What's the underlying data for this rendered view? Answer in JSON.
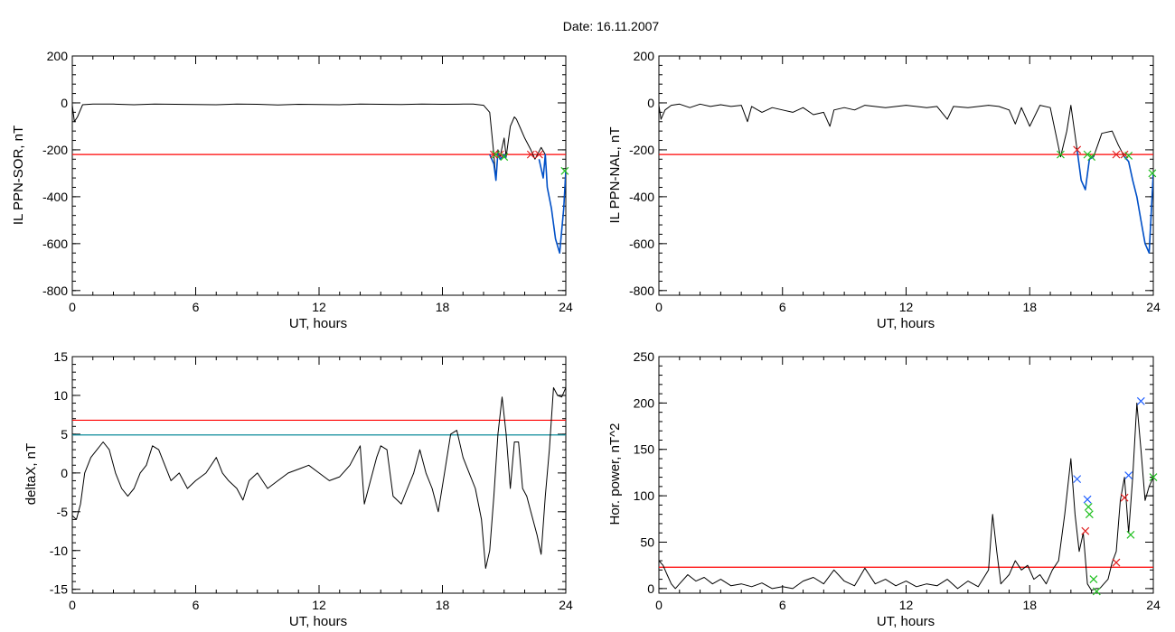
{
  "figure": {
    "title": "Date:  16.11.2007"
  },
  "colors": {
    "axes": "#000000",
    "trace": "#000000",
    "threshold": "#ff0000",
    "secondary_threshold": "#0a8a9a",
    "event_trace": "#0050c8",
    "marker_red": "#e02020",
    "marker_green": "#20c020",
    "marker_blue": "#2060ff"
  },
  "chart_data": [
    {
      "id": "sor",
      "type": "line",
      "xlabel": "UT, hours",
      "ylabel": "IL PPN-SOR, nT",
      "xlim": [
        0,
        24
      ],
      "ylim": [
        -820,
        200
      ],
      "xticks": [
        0,
        6,
        12,
        18,
        24
      ],
      "yticks": [
        -800,
        -600,
        -400,
        -200,
        0,
        200
      ],
      "threshold": -220,
      "series": [
        {
          "role": "trace",
          "x": [
            0,
            0.1,
            0.25,
            0.5,
            1,
            2,
            3,
            4,
            5,
            6,
            7,
            8,
            9,
            10,
            11,
            12,
            13,
            14,
            15,
            16,
            17,
            18,
            19,
            19.5,
            20,
            20.3,
            20.5,
            20.6,
            20.7,
            20.8,
            21,
            21.1,
            21.3,
            21.5,
            21.6,
            21.8,
            22,
            22.3,
            22.5,
            22.8,
            23,
            23.1,
            23.3,
            23.5,
            23.7,
            23.9,
            24
          ],
          "y": [
            -10,
            -80,
            -60,
            -8,
            -5,
            -5,
            -8,
            -5,
            -6,
            -7,
            -8,
            -5,
            -6,
            -9,
            -6,
            -7,
            -8,
            -5,
            -6,
            -7,
            -5,
            -6,
            -5,
            -5,
            -10,
            -40,
            -220,
            -330,
            -200,
            -230,
            -150,
            -230,
            -100,
            -60,
            -70,
            -110,
            -150,
            -200,
            -240,
            -190,
            -220,
            -360,
            -450,
            -580,
            -640,
            -450,
            -290
          ]
        },
        {
          "role": "event",
          "x": [
            20.3,
            20.5,
            20.6,
            20.7,
            20.8,
            21,
            21.1
          ],
          "y": [
            -220,
            -260,
            -330,
            -210,
            -240,
            -220,
            -235
          ]
        },
        {
          "role": "event",
          "x": [
            22.7,
            22.9,
            23,
            23.1,
            23.3,
            23.5,
            23.7,
            23.9,
            24
          ],
          "y": [
            -240,
            -320,
            -220,
            -360,
            -450,
            -580,
            -640,
            -450,
            -290
          ]
        }
      ],
      "markers": [
        {
          "x": 20.5,
          "y": -220,
          "color": "red"
        },
        {
          "x": 20.8,
          "y": -220,
          "color": "red"
        },
        {
          "x": 20.6,
          "y": -220,
          "color": "green"
        },
        {
          "x": 21.0,
          "y": -230,
          "color": "green"
        },
        {
          "x": 22.3,
          "y": -220,
          "color": "red"
        },
        {
          "x": 22.7,
          "y": -220,
          "color": "red"
        },
        {
          "x": 23.95,
          "y": -290,
          "color": "green"
        }
      ]
    },
    {
      "id": "nal",
      "type": "line",
      "xlabel": "UT, hours",
      "ylabel": "IL PPN-NAL, nT",
      "xlim": [
        0,
        24
      ],
      "ylim": [
        -820,
        200
      ],
      "xticks": [
        0,
        6,
        12,
        18,
        24
      ],
      "yticks": [
        -800,
        -600,
        -400,
        -200,
        0,
        200
      ],
      "threshold": -220,
      "series": [
        {
          "role": "trace",
          "x": [
            0,
            0.1,
            0.3,
            0.6,
            1,
            1.5,
            2,
            2.5,
            3,
            3.5,
            4,
            4.3,
            4.5,
            5,
            5.5,
            6,
            6.5,
            7,
            7.5,
            8,
            8.3,
            8.5,
            9,
            9.5,
            10,
            11,
            12,
            13,
            13.5,
            14,
            14.3,
            15,
            16,
            16.5,
            17,
            17.3,
            17.6,
            18,
            18.5,
            19,
            19.5,
            19.8,
            20,
            20.3,
            20.5,
            20.7,
            20.9,
            21.1,
            21.3,
            21.5,
            22,
            22.3,
            22.6,
            22.8,
            23,
            23.2,
            23.4,
            23.6,
            23.8,
            24
          ],
          "y": [
            -10,
            -70,
            -30,
            -10,
            -5,
            -20,
            -5,
            -15,
            -8,
            -15,
            -10,
            -80,
            -15,
            -40,
            -20,
            -30,
            -40,
            -20,
            -50,
            -40,
            -100,
            -30,
            -20,
            -30,
            -10,
            -20,
            -10,
            -20,
            -15,
            -70,
            -15,
            -20,
            -10,
            -15,
            -30,
            -90,
            -20,
            -100,
            -10,
            -20,
            -230,
            -120,
            -10,
            -200,
            -330,
            -370,
            -240,
            -230,
            -180,
            -130,
            -120,
            -180,
            -230,
            -250,
            -330,
            -400,
            -500,
            -600,
            -640,
            -300
          ]
        },
        {
          "role": "event",
          "x": [
            20.3,
            20.5,
            20.7,
            20.9,
            21.1
          ],
          "y": [
            -200,
            -330,
            -370,
            -240,
            -230
          ]
        },
        {
          "role": "event",
          "x": [
            22.6,
            22.8,
            23,
            23.2,
            23.4,
            23.6,
            23.8,
            24
          ],
          "y": [
            -230,
            -250,
            -330,
            -400,
            -500,
            -600,
            -640,
            -300
          ]
        }
      ],
      "markers": [
        {
          "x": 19.5,
          "y": -220,
          "color": "green"
        },
        {
          "x": 20.3,
          "y": -200,
          "color": "red"
        },
        {
          "x": 20.8,
          "y": -220,
          "color": "green"
        },
        {
          "x": 21.0,
          "y": -230,
          "color": "green"
        },
        {
          "x": 22.2,
          "y": -220,
          "color": "red"
        },
        {
          "x": 22.6,
          "y": -220,
          "color": "red"
        },
        {
          "x": 22.8,
          "y": -225,
          "color": "green"
        },
        {
          "x": 23.95,
          "y": -300,
          "color": "green"
        }
      ]
    },
    {
      "id": "deltax",
      "type": "line",
      "xlabel": "UT, hours",
      "ylabel": "deltaX, nT",
      "xlim": [
        0,
        24
      ],
      "ylim": [
        -15.5,
        15
      ],
      "xticks": [
        0,
        6,
        12,
        18,
        24
      ],
      "yticks": [
        -15,
        -10,
        -5,
        0,
        5,
        10,
        15
      ],
      "threshold": 6.8,
      "secondary_threshold": 4.9,
      "series": [
        {
          "role": "trace",
          "x": [
            0,
            0.2,
            0.4,
            0.6,
            0.9,
            1.2,
            1.5,
            1.8,
            2.1,
            2.4,
            2.7,
            3.0,
            3.3,
            3.6,
            3.9,
            4.2,
            4.5,
            4.8,
            5.2,
            5.6,
            6.0,
            6.5,
            7.0,
            7.3,
            7.6,
            8.0,
            8.3,
            8.6,
            9.0,
            9.5,
            10,
            10.5,
            11,
            11.5,
            12,
            12.5,
            13,
            13.5,
            14,
            14.2,
            14.5,
            14.8,
            15,
            15.3,
            15.6,
            16,
            16.3,
            16.6,
            16.9,
            17.2,
            17.5,
            17.8,
            18.1,
            18.4,
            18.7,
            19,
            19.3,
            19.6,
            19.9,
            20.1,
            20.3,
            20.5,
            20.7,
            20.9,
            21.1,
            21.3,
            21.5,
            21.7,
            21.9,
            22.1,
            22.3,
            22.6,
            22.8,
            23,
            23.2,
            23.4,
            23.6,
            23.8,
            24
          ],
          "y": [
            -5.5,
            -6,
            -4,
            0,
            2,
            3,
            4,
            3,
            0,
            -2,
            -3,
            -2,
            0,
            1,
            3.5,
            3,
            1,
            -1,
            0,
            -2,
            -1,
            0,
            2,
            0,
            -1,
            -2,
            -3.5,
            -1,
            0,
            -2,
            -1,
            0,
            0.5,
            1,
            0,
            -1,
            -0.5,
            1,
            3.5,
            -4,
            -1,
            2,
            3.5,
            3,
            -3,
            -4,
            -2,
            0,
            3,
            0,
            -2,
            -5,
            0,
            5,
            5.5,
            2,
            0,
            -2,
            -6,
            -12.3,
            -10,
            -3,
            5,
            9.8,
            5,
            -2,
            4,
            4,
            -2,
            -3,
            -5,
            -8,
            -10.5,
            -3,
            3,
            11,
            10,
            9.8,
            11
          ]
        }
      ],
      "markers": []
    },
    {
      "id": "power",
      "type": "line",
      "xlabel": "UT, hours",
      "ylabel": "Hor. power, nT^2",
      "xlim": [
        0,
        24
      ],
      "ylim": [
        -5,
        250
      ],
      "xticks": [
        0,
        6,
        12,
        18,
        24
      ],
      "yticks": [
        0,
        50,
        100,
        150,
        200,
        250
      ],
      "threshold": 23,
      "series": [
        {
          "role": "trace",
          "x": [
            0,
            0.2,
            0.4,
            0.6,
            0.8,
            1.0,
            1.4,
            1.8,
            2.2,
            2.6,
            3.0,
            3.5,
            4,
            4.5,
            5,
            5.5,
            6,
            6.5,
            7,
            7.5,
            8,
            8.5,
            9,
            9.5,
            10,
            10.5,
            11,
            11.5,
            12,
            12.5,
            13,
            13.5,
            14,
            14.5,
            15,
            15.5,
            16,
            16.2,
            16.4,
            16.6,
            16.8,
            17,
            17.3,
            17.6,
            17.9,
            18.2,
            18.5,
            18.8,
            19.1,
            19.4,
            19.7,
            20,
            20.2,
            20.4,
            20.6,
            20.8,
            21,
            21.2,
            21.4,
            21.6,
            21.8,
            22,
            22.2,
            22.4,
            22.6,
            22.8,
            23,
            23.2,
            23.4,
            23.6,
            23.8,
            24
          ],
          "y": [
            30,
            25,
            15,
            5,
            0,
            5,
            15,
            8,
            12,
            5,
            10,
            3,
            5,
            2,
            6,
            0,
            2,
            0,
            8,
            12,
            5,
            20,
            8,
            3,
            22,
            5,
            10,
            3,
            8,
            2,
            5,
            3,
            10,
            0,
            8,
            2,
            20,
            80,
            40,
            5,
            10,
            15,
            30,
            20,
            25,
            10,
            15,
            5,
            20,
            30,
            80,
            140,
            80,
            40,
            60,
            5,
            -2,
            0,
            0,
            5,
            10,
            28,
            40,
            95,
            120,
            60,
            120,
            200,
            150,
            95,
            110,
            120
          ]
        }
      ],
      "markers": [
        {
          "x": 20.3,
          "y": 118,
          "color": "blue"
        },
        {
          "x": 20.7,
          "y": 62,
          "color": "red"
        },
        {
          "x": 20.8,
          "y": 96,
          "color": "blue"
        },
        {
          "x": 20.85,
          "y": 88,
          "color": "green"
        },
        {
          "x": 20.9,
          "y": 80,
          "color": "green"
        },
        {
          "x": 21.1,
          "y": 10,
          "color": "green"
        },
        {
          "x": 21.25,
          "y": -3,
          "color": "green"
        },
        {
          "x": 22.2,
          "y": 28,
          "color": "red"
        },
        {
          "x": 22.6,
          "y": 98,
          "color": "red"
        },
        {
          "x": 22.8,
          "y": 122,
          "color": "blue"
        },
        {
          "x": 22.9,
          "y": 58,
          "color": "green"
        },
        {
          "x": 23.4,
          "y": 202,
          "color": "blue"
        },
        {
          "x": 24.0,
          "y": 120,
          "color": "green"
        }
      ]
    }
  ]
}
